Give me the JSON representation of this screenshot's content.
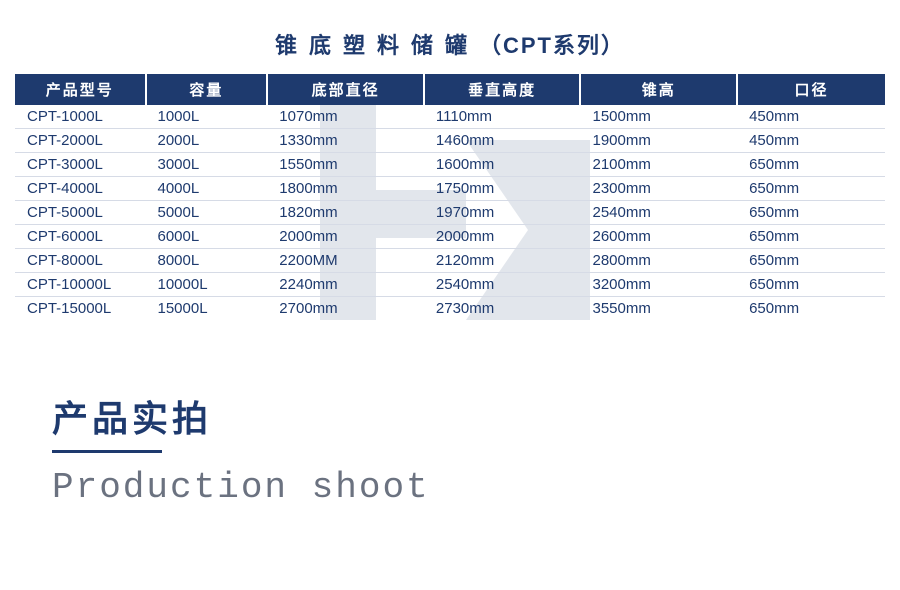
{
  "title_main": "锥底塑料储罐",
  "title_series": "（CPT系列）",
  "table": {
    "columns": [
      "产品型号",
      "容量",
      "底部直径",
      "垂直高度",
      "锥高",
      "口径"
    ],
    "rows": [
      [
        "CPT-1000L",
        "1000L",
        "1070mm",
        "1110mm",
        "1500mm",
        "450mm"
      ],
      [
        "CPT-2000L",
        "2000L",
        "1330mm",
        "1460mm",
        "1900mm",
        "450mm"
      ],
      [
        "CPT-3000L",
        "3000L",
        "1550mm",
        "1600mm",
        "2100mm",
        "650mm"
      ],
      [
        "CPT-4000L",
        "4000L",
        "1800mm",
        "1750mm",
        "2300mm",
        "650mm"
      ],
      [
        "CPT-5000L",
        "5000L",
        "1820mm",
        "1970mm",
        "2540mm",
        "650mm"
      ],
      [
        "CPT-6000L",
        "6000L",
        "2000mm",
        "2000mm",
        "2600mm",
        "650mm"
      ],
      [
        "CPT-8000L",
        "8000L",
        "2200MM",
        "2120mm",
        "2800mm",
        "650mm"
      ],
      [
        "CPT-10000L",
        "10000L",
        "2240mm",
        "2540mm",
        "3200mm",
        "650mm"
      ],
      [
        "CPT-15000L",
        "15000L",
        "2700mm",
        "2730mm",
        "3550mm",
        "650mm"
      ]
    ]
  },
  "section": {
    "cn": "产品实拍",
    "en": "Production shoot"
  },
  "colors": {
    "primary": "#1e3a6e",
    "row_border": "#d6dbe6",
    "en_text": "#6b7280",
    "watermark": "#1e3a6e"
  }
}
